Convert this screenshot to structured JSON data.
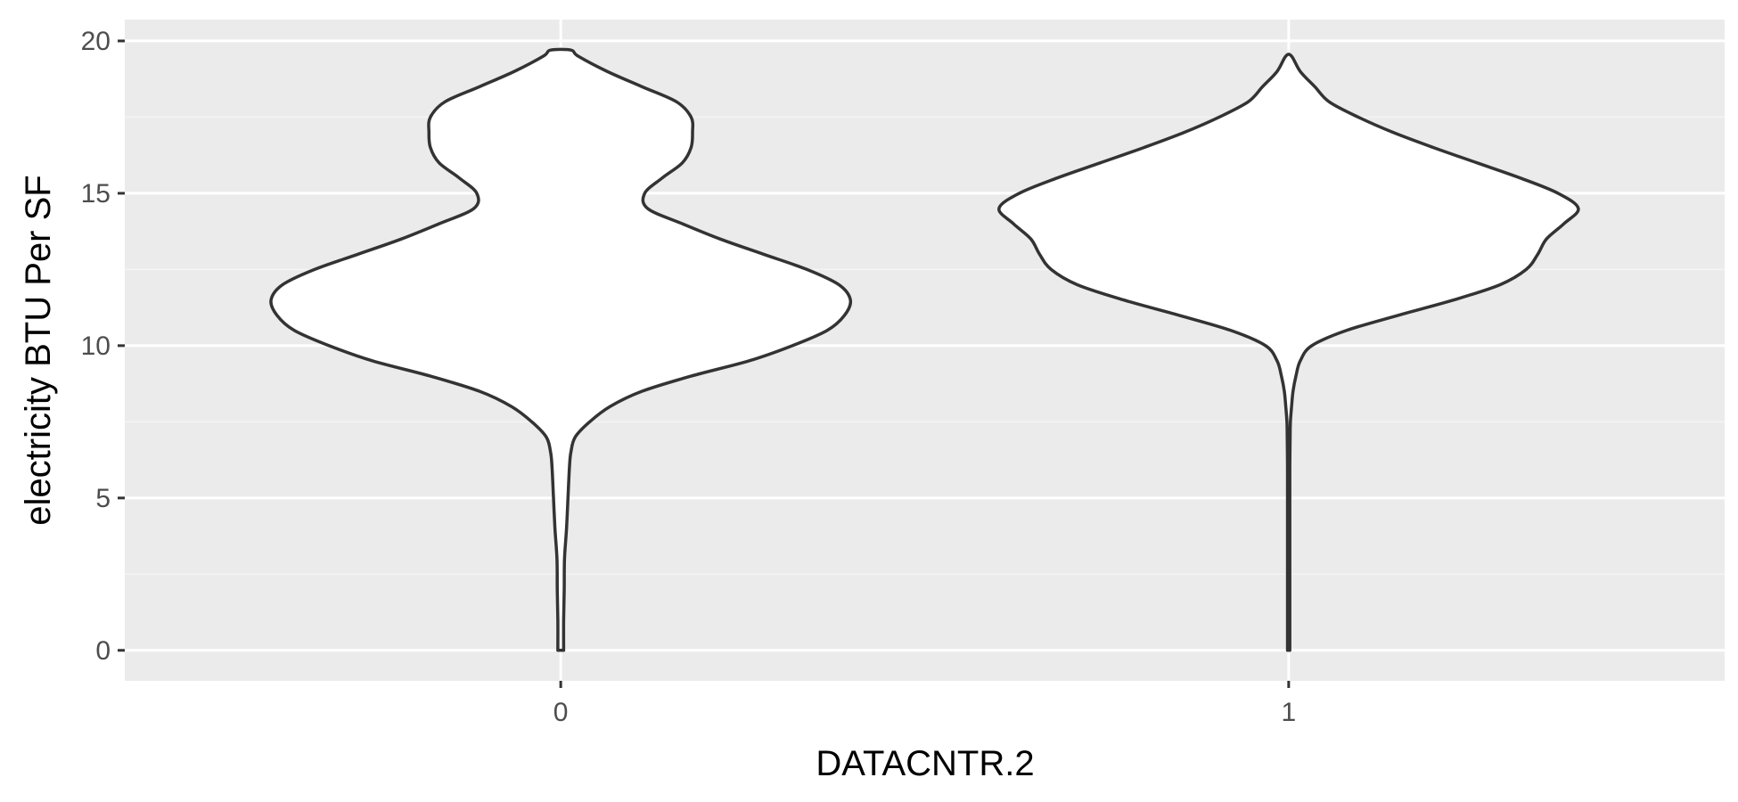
{
  "chart_data": {
    "type": "violin",
    "xlabel": "DATACNTR.2",
    "ylabel": "electricity BTU Per SF",
    "categories": [
      "0",
      "1"
    ],
    "ylim": [
      -1,
      20.7
    ],
    "y_ticks": [
      0,
      5,
      10,
      15,
      20
    ],
    "grid": true,
    "legend": "none",
    "violins": [
      {
        "category": "0",
        "min": 0,
        "max": 19.7,
        "density": [
          [
            0.0,
            0.01
          ],
          [
            1.0,
            0.01
          ],
          [
            2.0,
            0.012
          ],
          [
            3.0,
            0.013
          ],
          [
            4.0,
            0.02
          ],
          [
            5.0,
            0.025
          ],
          [
            6.0,
            0.03
          ],
          [
            6.5,
            0.035
          ],
          [
            7.0,
            0.05
          ],
          [
            7.5,
            0.1
          ],
          [
            8.0,
            0.17
          ],
          [
            8.5,
            0.28
          ],
          [
            9.0,
            0.45
          ],
          [
            9.5,
            0.65
          ],
          [
            10.0,
            0.8
          ],
          [
            10.5,
            0.92
          ],
          [
            11.0,
            0.98
          ],
          [
            11.5,
            1.0
          ],
          [
            12.0,
            0.96
          ],
          [
            12.5,
            0.85
          ],
          [
            13.0,
            0.7
          ],
          [
            13.5,
            0.55
          ],
          [
            14.0,
            0.42
          ],
          [
            14.5,
            0.3
          ],
          [
            15.0,
            0.29
          ],
          [
            15.5,
            0.35
          ],
          [
            16.0,
            0.42
          ],
          [
            16.5,
            0.45
          ],
          [
            17.0,
            0.455
          ],
          [
            17.5,
            0.45
          ],
          [
            18.0,
            0.4
          ],
          [
            18.5,
            0.28
          ],
          [
            19.0,
            0.16
          ],
          [
            19.5,
            0.06
          ],
          [
            19.7,
            0.035
          ]
        ]
      },
      {
        "category": "1",
        "min": 0,
        "max": 19.5,
        "density": [
          [
            0.0,
            0.004
          ],
          [
            1.0,
            0.004
          ],
          [
            2.0,
            0.004
          ],
          [
            3.0,
            0.004
          ],
          [
            4.0,
            0.004
          ],
          [
            5.0,
            0.004
          ],
          [
            6.0,
            0.004
          ],
          [
            7.0,
            0.005
          ],
          [
            7.5,
            0.006
          ],
          [
            8.0,
            0.01
          ],
          [
            8.5,
            0.015
          ],
          [
            9.0,
            0.025
          ],
          [
            9.5,
            0.04
          ],
          [
            10.0,
            0.08
          ],
          [
            10.5,
            0.2
          ],
          [
            11.0,
            0.38
          ],
          [
            11.5,
            0.57
          ],
          [
            12.0,
            0.73
          ],
          [
            12.5,
            0.82
          ],
          [
            13.0,
            0.86
          ],
          [
            13.5,
            0.89
          ],
          [
            14.0,
            0.95
          ],
          [
            14.5,
            1.0
          ],
          [
            15.0,
            0.93
          ],
          [
            15.5,
            0.8
          ],
          [
            16.0,
            0.65
          ],
          [
            16.5,
            0.5
          ],
          [
            17.0,
            0.36
          ],
          [
            17.5,
            0.24
          ],
          [
            18.0,
            0.14
          ],
          [
            18.5,
            0.09
          ],
          [
            19.0,
            0.04
          ],
          [
            19.5,
            0.01
          ]
        ]
      }
    ],
    "colors": {
      "panel_background": "#ebebeb",
      "major_grid": "#ffffff",
      "minor_grid": "#f5f5f5",
      "violin_fill": "#ffffff",
      "violin_outline": "#333333",
      "tick_text": "#4d4d4d",
      "axis_title": "#000000"
    }
  }
}
